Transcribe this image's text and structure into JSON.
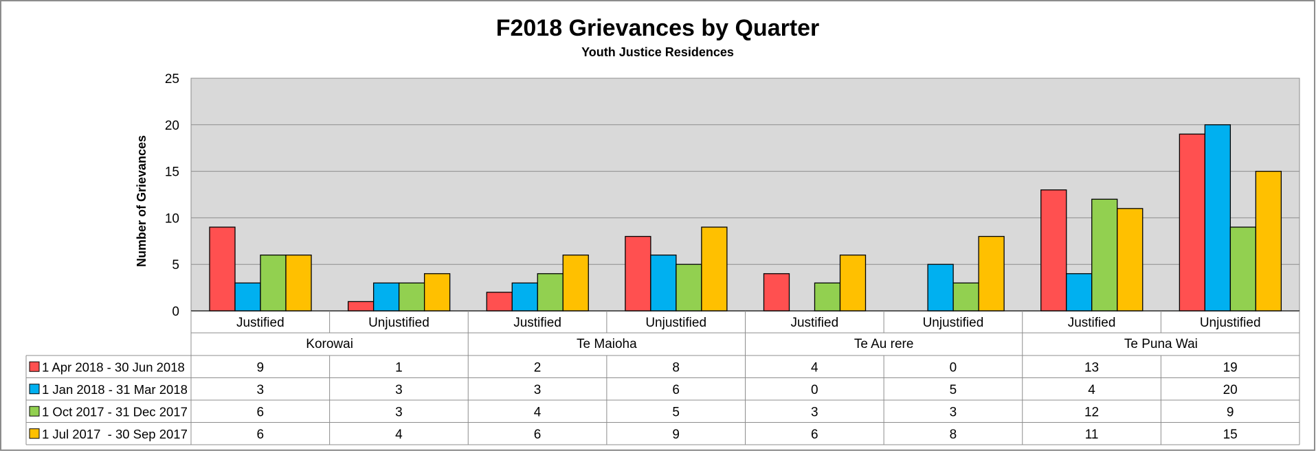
{
  "chart_data": {
    "type": "bar",
    "title": "F2018 Grievances by Quarter",
    "subtitle": "Youth Justice Residences",
    "ylabel": "Number of Grievances",
    "xlabel": "",
    "ylim": [
      0,
      25
    ],
    "yticks": [
      0,
      5,
      10,
      15,
      20,
      25
    ],
    "grid": true,
    "legend": "data-table-left",
    "groups": [
      {
        "label": "Korowai",
        "span": 2
      },
      {
        "label": "Te Maioha",
        "span": 2
      },
      {
        "label": "Te Au rere",
        "span": 2
      },
      {
        "label": "Te Puna Wai",
        "span": 2
      }
    ],
    "categories": [
      "Justified",
      "Unjustified",
      "Justified",
      "Unjustified",
      "Justified",
      "Unjustified",
      "Justified",
      "Unjustified"
    ],
    "series": [
      {
        "name": "1 Apr 2018 - 30 Jun 2018",
        "color": "#FF5050",
        "values": [
          9,
          1,
          2,
          8,
          4,
          0,
          13,
          19
        ]
      },
      {
        "name": "1 Jan 2018 - 31 Mar 2018",
        "color": "#00B0F0",
        "values": [
          3,
          3,
          3,
          6,
          0,
          5,
          4,
          20
        ]
      },
      {
        "name": "1 Oct 2017 - 31 Dec 2017",
        "color": "#92D050",
        "values": [
          6,
          3,
          4,
          5,
          3,
          3,
          12,
          9
        ]
      },
      {
        "name": "1 Jul 2017  - 30 Sep 2017",
        "color": "#FFC000",
        "values": [
          6,
          4,
          6,
          9,
          6,
          8,
          11,
          15
        ]
      }
    ],
    "plot_background": "#D9D9D9"
  }
}
